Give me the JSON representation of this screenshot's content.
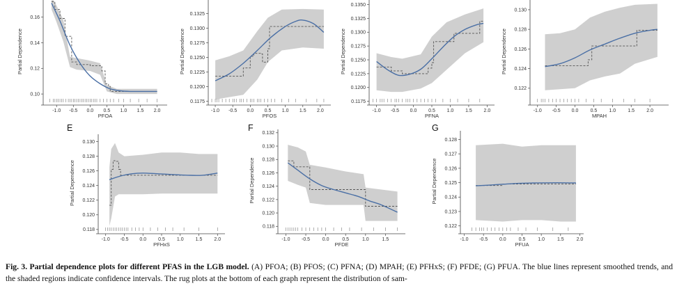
{
  "caption": {
    "lead": "Fig. 3. Partial dependence plots for different PFAS in the LGB model.",
    "rest": " (A) PFOA; (B) PFOS; (C) PFNA; (D) MPAH; (E) PFHxS; (F) PFDE; (G) PFUA. The blue lines represent smoothed trends, and the shaded regions indicate confidence intervals. The rug plots at the bottom of each graph represent the distribution of sam-"
  },
  "colors": {
    "trend": "#4a6fa5",
    "band": "#cfcfcf",
    "step": "#555555",
    "axis": "#444444"
  },
  "chart_data": [
    {
      "type": "line",
      "letter": "",
      "xlabel": "PFOA",
      "ylabel": "Partial Dependence",
      "xlim": [
        -1.4,
        2.3
      ],
      "ylim": [
        0.093,
        0.175
      ],
      "xticks": [
        -1.0,
        -0.5,
        0.0,
        0.5,
        1.0,
        1.5,
        2.0
      ],
      "xtick_labels": [
        "-1.0",
        "-0.5",
        "0.0",
        "0.5",
        "1.0",
        "1.5",
        "2.0"
      ],
      "yticks": [
        0.1,
        0.12,
        0.14,
        0.16
      ],
      "ytick_labels": [
        "0.10",
        "0.12",
        "0.14",
        "0.16"
      ],
      "series": [
        {
          "role": "smoothed",
          "x": [
            -1.15,
            -0.9,
            -0.6,
            -0.3,
            0.0,
            0.3,
            0.6,
            0.9,
            1.2,
            1.6,
            2.0
          ],
          "y": [
            0.171,
            0.157,
            0.138,
            0.124,
            0.114,
            0.108,
            0.104,
            0.1025,
            0.102,
            0.102,
            0.102
          ]
        },
        {
          "role": "step",
          "x": [
            -1.15,
            -1.05,
            -0.9,
            -0.75,
            -0.55,
            -0.4,
            0.0,
            0.35,
            0.45,
            0.55,
            0.6,
            2.0
          ],
          "y": [
            0.172,
            0.166,
            0.159,
            0.145,
            0.125,
            0.123,
            0.122,
            0.118,
            0.108,
            0.106,
            0.102,
            0.102
          ]
        },
        {
          "role": "band",
          "x": [
            -1.15,
            -1.0,
            -0.8,
            -0.6,
            -0.4,
            0.0,
            0.3,
            0.5,
            0.8,
            1.2,
            2.0
          ],
          "y_low": [
            0.166,
            0.156,
            0.141,
            0.121,
            0.119,
            0.118,
            0.115,
            0.102,
            0.1,
            0.1,
            0.1
          ],
          "y_high": [
            0.176,
            0.169,
            0.158,
            0.129,
            0.128,
            0.126,
            0.124,
            0.107,
            0.104,
            0.104,
            0.104
          ]
        }
      ],
      "rug": [
        -1.2,
        -1.1,
        -1.05,
        -1.0,
        -0.95,
        -0.9,
        -0.85,
        -0.8,
        -0.72,
        -0.65,
        -0.6,
        -0.55,
        -0.5,
        -0.45,
        -0.4,
        -0.35,
        -0.3,
        -0.25,
        -0.2,
        -0.15,
        -0.1,
        -0.05,
        0.0,
        0.05,
        0.1,
        0.15,
        0.2,
        0.3,
        0.4,
        0.5,
        0.6,
        0.7,
        0.85,
        1.0,
        1.2,
        1.45,
        1.7,
        2.0
      ]
    },
    {
      "type": "line",
      "letter": "",
      "xlabel": "PFOS",
      "ylabel": "Partial Dependence",
      "xlim": [
        -1.2,
        2.3
      ],
      "ylim": [
        0.1172,
        0.1352
      ],
      "xticks": [
        -1.0,
        -0.5,
        0.0,
        0.5,
        1.0,
        1.5,
        2.0
      ],
      "xtick_labels": [
        "-1.0",
        "-0.5",
        "0.0",
        "0.5",
        "1.0",
        "1.5",
        "2.0"
      ],
      "yticks": [
        0.1175,
        0.12,
        0.1225,
        0.125,
        0.1275,
        0.13,
        0.1325
      ],
      "ytick_labels": [
        "0.1175",
        "0.1200",
        "0.1225",
        "0.1250",
        "0.1275",
        "0.1300",
        "0.1325"
      ],
      "series": [
        {
          "role": "smoothed",
          "x": [
            -1.0,
            -0.6,
            -0.2,
            0.2,
            0.6,
            1.0,
            1.3,
            1.5,
            1.8,
            2.1
          ],
          "y": [
            0.121,
            0.1222,
            0.124,
            0.1262,
            0.1285,
            0.1303,
            0.1312,
            0.1314,
            0.1308,
            0.1293
          ]
        },
        {
          "role": "step",
          "x": [
            -1.0,
            -0.6,
            -0.2,
            0.0,
            0.1,
            0.3,
            0.35,
            0.5,
            0.55,
            2.1
          ],
          "y": [
            0.1218,
            0.1218,
            0.1232,
            0.1252,
            0.1257,
            0.1256,
            0.1242,
            0.1265,
            0.1303,
            0.1303
          ]
        },
        {
          "role": "band",
          "x": [
            -1.0,
            -0.6,
            -0.2,
            0.2,
            0.5,
            0.9,
            1.5,
            2.1
          ],
          "y_low": [
            0.1178,
            0.1182,
            0.1186,
            0.1212,
            0.1242,
            0.1262,
            0.1267,
            0.1265
          ],
          "y_high": [
            0.1245,
            0.1252,
            0.1262,
            0.1295,
            0.1318,
            0.1332,
            0.1333,
            0.1332
          ]
        }
      ],
      "rug": [
        -1.1,
        -1.0,
        -0.95,
        -0.9,
        -0.8,
        -0.7,
        -0.6,
        -0.5,
        -0.45,
        -0.4,
        -0.3,
        -0.25,
        -0.2,
        -0.1,
        0.0,
        0.05,
        0.1,
        0.2,
        0.25,
        0.3,
        0.4,
        0.5,
        0.6,
        0.7,
        0.9,
        1.1,
        1.3,
        1.6,
        1.9,
        2.1
      ]
    },
    {
      "type": "line",
      "letter": "",
      "xlabel": "PFNA",
      "ylabel": "Partial Dependence",
      "xlim": [
        -1.2,
        2.2
      ],
      "ylim": [
        0.1172,
        0.1362
      ],
      "xticks": [
        -1.0,
        -0.5,
        0.0,
        0.5,
        1.0,
        1.5,
        2.0
      ],
      "xtick_labels": [
        "-1.0",
        "-0.5",
        "0.0",
        "0.5",
        "1.0",
        "1.5",
        "2.0"
      ],
      "yticks": [
        0.1175,
        0.12,
        0.1225,
        0.125,
        0.1275,
        0.13,
        0.1325,
        0.135
      ],
      "ytick_labels": [
        "0.1175",
        "0.1200",
        "0.1225",
        "0.1250",
        "0.1275",
        "0.1300",
        "0.1325",
        "0.1350"
      ],
      "series": [
        {
          "role": "smoothed",
          "x": [
            -1.0,
            -0.7,
            -0.4,
            -0.1,
            0.2,
            0.5,
            0.8,
            1.1,
            1.4,
            1.7,
            1.9
          ],
          "y": [
            0.1247,
            0.1232,
            0.1222,
            0.1224,
            0.1233,
            0.1252,
            0.1273,
            0.1292,
            0.1305,
            0.1313,
            0.1316
          ]
        },
        {
          "role": "step",
          "x": [
            -1.0,
            -0.7,
            -0.6,
            -0.3,
            0.2,
            0.4,
            0.5,
            0.55,
            0.9,
            1.1,
            1.75,
            1.8,
            1.9
          ],
          "y": [
            0.1237,
            0.1237,
            0.123,
            0.1225,
            0.1225,
            0.1235,
            0.1245,
            0.1283,
            0.1283,
            0.1298,
            0.1298,
            0.132,
            0.132
          ]
        },
        {
          "role": "band",
          "x": [
            -1.0,
            -0.6,
            -0.3,
            0.2,
            0.5,
            0.9,
            1.4,
            1.9
          ],
          "y_low": [
            0.1195,
            0.1192,
            0.1192,
            0.1198,
            0.1208,
            0.1232,
            0.1262,
            0.1282
          ],
          "y_high": [
            0.1262,
            0.1255,
            0.1252,
            0.126,
            0.1292,
            0.1318,
            0.1332,
            0.1343
          ]
        }
      ],
      "rug": [
        -1.1,
        -1.0,
        -0.9,
        -0.85,
        -0.8,
        -0.7,
        -0.6,
        -0.5,
        -0.45,
        -0.4,
        -0.3,
        -0.2,
        -0.15,
        -0.1,
        0.0,
        0.1,
        0.2,
        0.3,
        0.4,
        0.5,
        0.6,
        0.8,
        1.0,
        1.2,
        1.5,
        1.8
      ]
    },
    {
      "type": "line",
      "letter": "",
      "xlabel": "MPAH",
      "ylabel": "Partial Dependence",
      "xlim": [
        -1.2,
        2.5
      ],
      "ylim": [
        0.1205,
        0.1312
      ],
      "xticks": [
        -1.0,
        -0.5,
        0.0,
        0.5,
        1.0,
        1.5,
        2.0
      ],
      "xtick_labels": [
        "-1.0",
        "-0.5",
        "0.0",
        "0.5",
        "1.0",
        "1.5",
        "2.0"
      ],
      "yticks": [
        0.122,
        0.124,
        0.126,
        0.128,
        0.13
      ],
      "ytick_labels": [
        "0.122",
        "0.124",
        "0.126",
        "0.128",
        "0.130"
      ],
      "series": [
        {
          "role": "smoothed",
          "x": [
            -0.8,
            -0.4,
            0.0,
            0.4,
            0.8,
            1.2,
            1.6,
            2.0,
            2.2
          ],
          "y": [
            0.1242,
            0.1245,
            0.1251,
            0.1259,
            0.1265,
            0.1271,
            0.1276,
            0.1279,
            0.128
          ]
        },
        {
          "role": "step",
          "x": [
            -0.8,
            0.0,
            0.35,
            0.45,
            1.55,
            1.65,
            2.2
          ],
          "y": [
            0.1243,
            0.1243,
            0.1249,
            0.1263,
            0.1263,
            0.1279,
            0.1279
          ]
        },
        {
          "role": "band",
          "x": [
            -0.8,
            -0.4,
            0.0,
            0.4,
            0.8,
            1.2,
            1.6,
            2.2
          ],
          "y_low": [
            0.1218,
            0.1219,
            0.122,
            0.1228,
            0.1232,
            0.1235,
            0.1245,
            0.1252
          ],
          "y_high": [
            0.1275,
            0.1276,
            0.128,
            0.1292,
            0.1298,
            0.1302,
            0.1305,
            0.1306
          ]
        }
      ],
      "rug": [
        -1.0,
        -0.9,
        -0.85,
        -0.8,
        -0.7,
        -0.6,
        -0.5,
        -0.4,
        -0.3,
        -0.2,
        -0.1,
        0.0,
        0.1,
        0.3,
        0.5,
        0.7,
        1.0,
        1.3,
        1.6,
        2.0
      ]
    },
    {
      "type": "line",
      "letter": "E",
      "xlabel": "PFHxS",
      "ylabel": "Partial Dependence",
      "xlim": [
        -1.2,
        2.2
      ],
      "ylim": [
        0.1177,
        0.131
      ],
      "xticks": [
        -1.0,
        -0.5,
        0.0,
        0.5,
        1.0,
        1.5,
        2.0
      ],
      "xtick_labels": [
        "-1.0",
        "-0.5",
        "0.0",
        "0.5",
        "1.0",
        "1.5",
        "2.0"
      ],
      "yticks": [
        0.118,
        0.12,
        0.122,
        0.124,
        0.126,
        0.128,
        0.13
      ],
      "ytick_labels": [
        "0.118",
        "0.120",
        "0.122",
        "0.124",
        "0.126",
        "0.128",
        "0.130"
      ],
      "series": [
        {
          "role": "smoothed",
          "x": [
            -0.9,
            -0.6,
            -0.3,
            0.0,
            0.4,
            0.8,
            1.2,
            1.6,
            2.0
          ],
          "y": [
            0.1248,
            0.1253,
            0.1256,
            0.1257,
            0.1256,
            0.1255,
            0.1254,
            0.1254,
            0.1257
          ]
        },
        {
          "role": "step",
          "x": [
            -0.9,
            -0.85,
            -0.8,
            -0.75,
            -0.65,
            -0.6,
            2.0
          ],
          "y": [
            0.1213,
            0.1262,
            0.1274,
            0.1273,
            0.1262,
            0.1254,
            0.1254
          ]
        },
        {
          "role": "band",
          "x": [
            -0.9,
            -0.85,
            -0.75,
            -0.65,
            -0.5,
            0.0,
            0.5,
            1.0,
            1.5,
            2.0
          ],
          "y_low": [
            0.1185,
            0.1195,
            0.1225,
            0.1228,
            0.1228,
            0.1228,
            0.1229,
            0.1229,
            0.1229,
            0.1229
          ],
          "y_high": [
            0.1265,
            0.129,
            0.1298,
            0.1285,
            0.128,
            0.1282,
            0.1285,
            0.1285,
            0.1283,
            0.1283
          ]
        }
      ],
      "rug": [
        -1.0,
        -0.95,
        -0.9,
        -0.85,
        -0.8,
        -0.75,
        -0.7,
        -0.65,
        -0.6,
        -0.55,
        -0.5,
        -0.45,
        -0.4,
        -0.3,
        -0.2,
        -0.1,
        0.0,
        0.2,
        0.4,
        0.6,
        0.8,
        1.1,
        1.5,
        2.0
      ]
    },
    {
      "type": "line",
      "letter": "F",
      "xlabel": "PFDE",
      "ylabel": "Partial Dependence",
      "xlim": [
        -1.2,
        2.0
      ],
      "ylim": [
        0.1172,
        0.1325
      ],
      "xticks": [
        -1.0,
        -0.5,
        0.0,
        0.5,
        1.0,
        1.5
      ],
      "xtick_labels": [
        "-1.0",
        "-0.5",
        "0.0",
        "0.5",
        "1.0",
        "1.5"
      ],
      "yticks": [
        0.118,
        0.12,
        0.122,
        0.124,
        0.126,
        0.128,
        0.13,
        0.132
      ],
      "ytick_labels": [
        "0.118",
        "0.120",
        "0.122",
        "0.124",
        "0.126",
        "0.128",
        "0.130",
        "0.132"
      ],
      "series": [
        {
          "role": "smoothed",
          "x": [
            -0.95,
            -0.7,
            -0.4,
            -0.1,
            0.2,
            0.5,
            0.8,
            1.1,
            1.4,
            1.8
          ],
          "y": [
            0.1275,
            0.1264,
            0.1251,
            0.1241,
            0.1235,
            0.123,
            0.1225,
            0.1218,
            0.1212,
            0.1201
          ]
        },
        {
          "role": "step",
          "x": [
            -0.95,
            -0.8,
            -0.5,
            -0.4,
            0.95,
            1.0,
            1.8
          ],
          "y": [
            0.1278,
            0.1269,
            0.1269,
            0.1235,
            0.1235,
            0.121,
            0.121
          ]
        },
        {
          "role": "band",
          "x": [
            -0.95,
            -0.7,
            -0.5,
            -0.4,
            0.0,
            0.5,
            0.95,
            1.0,
            1.4,
            1.8
          ],
          "y_low": [
            0.1248,
            0.1242,
            0.1238,
            0.1215,
            0.1212,
            0.1212,
            0.1212,
            0.1188,
            0.1188,
            0.1188
          ],
          "y_high": [
            0.1302,
            0.1298,
            0.1292,
            0.1272,
            0.1268,
            0.1262,
            0.1258,
            0.1238,
            0.1235,
            0.1232
          ]
        }
      ],
      "rug": [
        -1.0,
        -0.95,
        -0.9,
        -0.85,
        -0.8,
        -0.75,
        -0.7,
        -0.6,
        -0.5,
        -0.4,
        -0.3,
        -0.2,
        -0.1,
        0.0,
        0.2,
        0.4,
        0.6,
        0.9,
        1.2,
        1.5,
        1.8
      ]
    },
    {
      "type": "line",
      "letter": "G",
      "xlabel": "PFUA",
      "ylabel": "Partial Dependence",
      "xlim": [
        -1.1,
        2.1
      ],
      "ylim": [
        0.1216,
        0.1286
      ],
      "xticks": [
        -1.0,
        -0.5,
        0.0,
        0.5,
        1.0,
        1.5,
        2.0
      ],
      "xtick_labels": [
        "-1.0",
        "-0.5",
        "0.0",
        "0.5",
        "1.0",
        "1.5",
        "2.0"
      ],
      "yticks": [
        0.122,
        0.123,
        0.124,
        0.125,
        0.126,
        0.127,
        0.128
      ],
      "ytick_labels": [
        "0.122",
        "0.123",
        "0.124",
        "0.125",
        "0.126",
        "0.127",
        "0.128"
      ],
      "series": [
        {
          "role": "smoothed",
          "x": [
            -0.7,
            -0.3,
            0.0,
            0.4,
            0.8,
            1.2,
            1.6,
            1.9
          ],
          "y": [
            0.12478,
            0.12484,
            0.12489,
            0.12495,
            0.12498,
            0.12499,
            0.12499,
            0.12498
          ]
        },
        {
          "role": "step",
          "x": [
            -0.7,
            -0.2,
            0.0,
            1.9
          ],
          "y": [
            0.1248,
            0.1248,
            0.1249,
            0.1249
          ]
        },
        {
          "role": "band",
          "x": [
            -0.7,
            0.0,
            0.5,
            1.0,
            1.5,
            1.9
          ],
          "y_low": [
            0.1224,
            0.1223,
            0.1224,
            0.1224,
            0.1223,
            0.1223
          ],
          "y_high": [
            0.1276,
            0.1277,
            0.1275,
            0.1276,
            0.1276,
            0.1276
          ]
        }
      ],
      "rug": [
        -0.8,
        -0.7,
        -0.6,
        -0.55,
        -0.5,
        -0.4,
        -0.3,
        -0.2,
        -0.1,
        0.0,
        0.1,
        0.2,
        0.4,
        0.6,
        0.9,
        1.3,
        1.7
      ]
    }
  ]
}
